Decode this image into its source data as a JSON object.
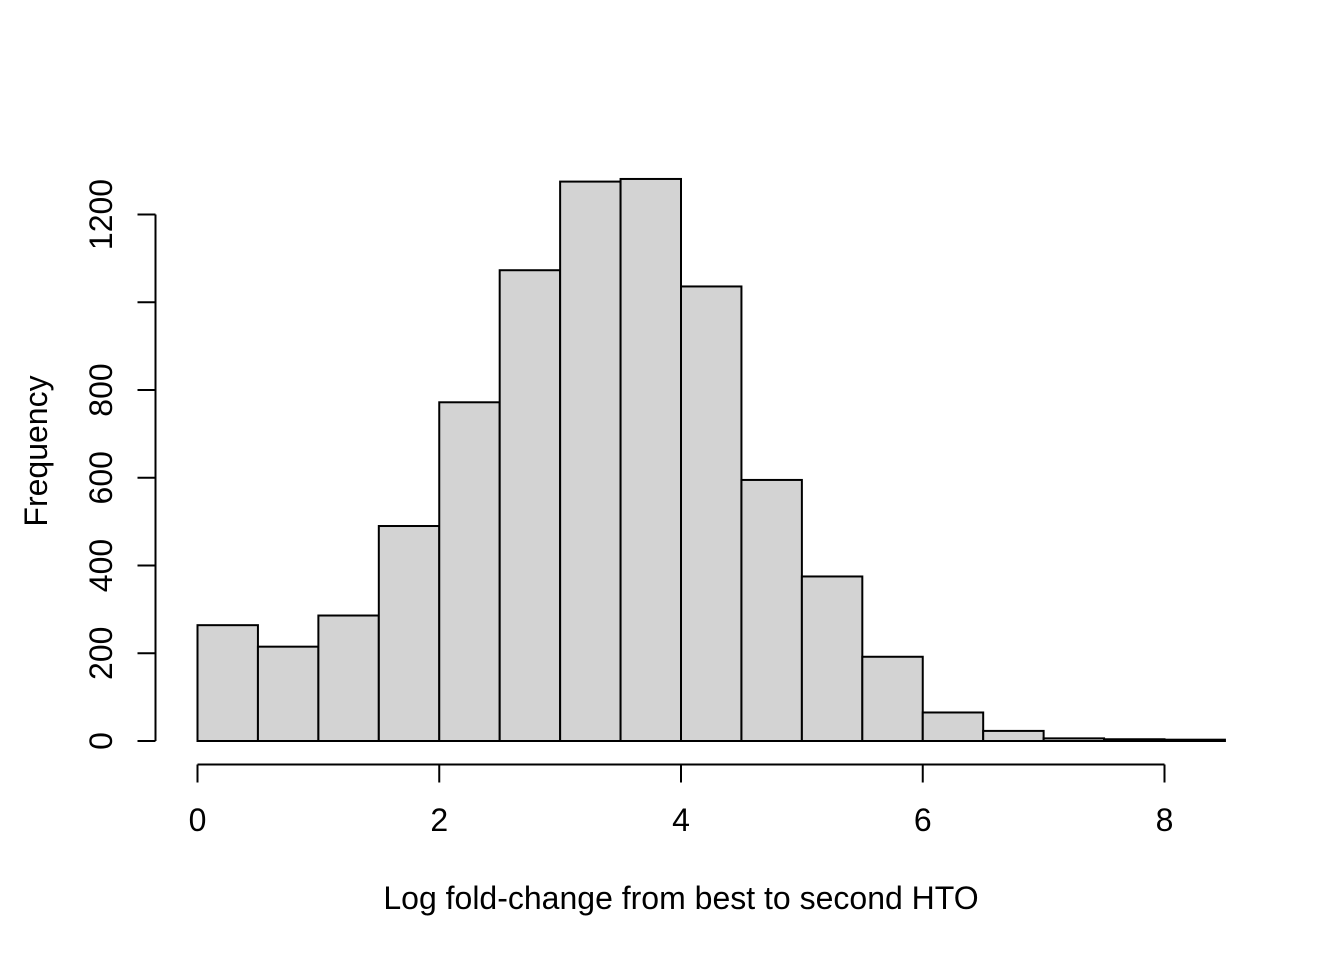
{
  "chart_data": {
    "type": "bar",
    "subtype": "histogram",
    "title": "",
    "xlabel": "Log fold-change from best to second HTO",
    "ylabel": "Frequency",
    "bin_start": 0,
    "bin_width": 0.5,
    "bin_edges": [
      0,
      0.5,
      1,
      1.5,
      2,
      2.5,
      3,
      3.5,
      4,
      4.5,
      5,
      5.5,
      6,
      6.5,
      7,
      7.5,
      8,
      8.5
    ],
    "counts": [
      264,
      215,
      286,
      490,
      772,
      1073,
      1275,
      1281,
      1036,
      595,
      375,
      192,
      65,
      23,
      6,
      4,
      3
    ],
    "x_ticks": [
      {
        "value": 0,
        "label": "0"
      },
      {
        "value": 2,
        "label": "2"
      },
      {
        "value": 4,
        "label": "4"
      },
      {
        "value": 6,
        "label": "6"
      },
      {
        "value": 8,
        "label": "8"
      }
    ],
    "y_ticks": [
      {
        "value": 0,
        "label": "0"
      },
      {
        "value": 200,
        "label": "200"
      },
      {
        "value": 400,
        "label": "400"
      },
      {
        "value": 600,
        "label": "600"
      },
      {
        "value": 800,
        "label": "800"
      },
      {
        "value": 1000,
        "label": ""
      },
      {
        "value": 1200,
        "label": "1200"
      }
    ],
    "xlim": [
      0,
      8.5
    ],
    "ylim": [
      0,
      1200
    ],
    "grid": false,
    "legend": null,
    "bar_fill": "#d3d3d3",
    "bar_stroke": "#000000",
    "axis_color": "#000000",
    "background": "#ffffff"
  }
}
